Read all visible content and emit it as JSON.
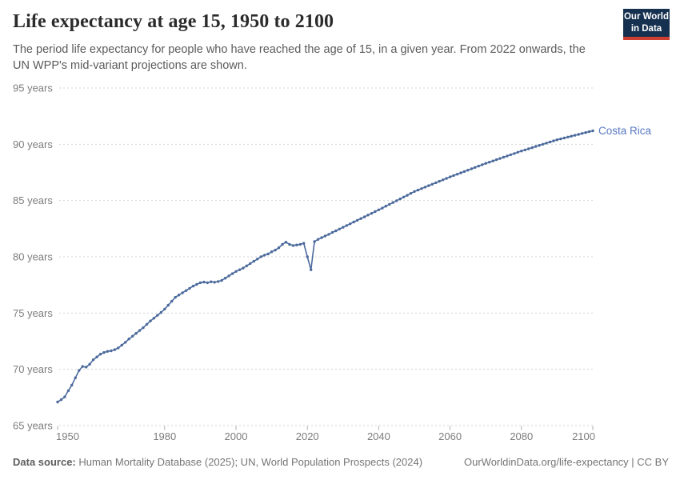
{
  "header": {
    "title": "Life expectancy at age 15, 1950 to 2100",
    "subtitle": "The period life expectancy for people who have reached the age of 15, in a given year. From 2022 onwards, the UN WPP's mid-variant projections are shown."
  },
  "logo": {
    "line1": "Our World",
    "line2": "in Data",
    "bg_color": "#16304f",
    "bar_color": "#cf3f31"
  },
  "footer": {
    "source_label": "Data source:",
    "source_text": " Human Mortality Database (2025); UN, World Population Prospects (2024)",
    "attribution": "OurWorldinData.org/life-expectancy | CC BY"
  },
  "chart_data": {
    "type": "line",
    "title": "Life expectancy at age 15, 1950 to 2100",
    "xlabel": "",
    "ylabel": "",
    "xlim": [
      1950,
      2100
    ],
    "ylim": [
      65,
      95
    ],
    "grid": "horizontal-dashed",
    "legend_position": "end-of-line-label",
    "projection_start_year": 2022,
    "xticks": [
      1950,
      1980,
      2000,
      2020,
      2040,
      2060,
      2080,
      2100
    ],
    "yticks": [
      {
        "value": 95,
        "label": "95 years"
      },
      {
        "value": 90,
        "label": "90 years"
      },
      {
        "value": 85,
        "label": "85 years"
      },
      {
        "value": 80,
        "label": "80 years"
      },
      {
        "value": 75,
        "label": "75 years"
      },
      {
        "value": 70,
        "label": "70 years"
      },
      {
        "value": 65,
        "label": "65 years"
      }
    ],
    "series": [
      {
        "name": "Costa Rica",
        "color": "#4c6a9c",
        "label_color": "#5878c1",
        "year_start": 1950,
        "year_end": 2100,
        "year_step": 1,
        "values": [
          67.1,
          67.3,
          67.55,
          68.1,
          68.6,
          69.25,
          69.9,
          70.25,
          70.2,
          70.45,
          70.85,
          71.1,
          71.35,
          71.5,
          71.6,
          71.65,
          71.75,
          71.9,
          72.15,
          72.4,
          72.7,
          72.95,
          73.2,
          73.45,
          73.7,
          74.0,
          74.3,
          74.55,
          74.8,
          75.05,
          75.35,
          75.7,
          76.05,
          76.4,
          76.6,
          76.8,
          77.0,
          77.2,
          77.4,
          77.55,
          77.7,
          77.75,
          77.7,
          77.78,
          77.74,
          77.8,
          77.9,
          78.1,
          78.3,
          78.5,
          78.7,
          78.85,
          79.0,
          79.2,
          79.4,
          79.6,
          79.8,
          80.0,
          80.15,
          80.25,
          80.45,
          80.6,
          80.8,
          81.1,
          81.3,
          81.1,
          81.0,
          81.05,
          81.1,
          81.2,
          80.0,
          78.85,
          81.35,
          81.55,
          81.7,
          81.85,
          82.0,
          82.16,
          82.31,
          82.47,
          82.62,
          82.78,
          82.93,
          83.09,
          83.24,
          83.4,
          83.55,
          83.71,
          83.86,
          84.02,
          84.17,
          84.33,
          84.5,
          84.66,
          84.82,
          84.98,
          85.15,
          85.31,
          85.47,
          85.64,
          85.8,
          85.93,
          86.06,
          86.19,
          86.32,
          86.45,
          86.58,
          86.71,
          86.84,
          86.97,
          87.1,
          87.22,
          87.34,
          87.46,
          87.58,
          87.7,
          87.82,
          87.94,
          88.06,
          88.18,
          88.3,
          88.41,
          88.52,
          88.63,
          88.74,
          88.85,
          88.96,
          89.07,
          89.18,
          89.29,
          89.4,
          89.5,
          89.6,
          89.7,
          89.8,
          89.9,
          90.0,
          90.1,
          90.2,
          90.3,
          90.4,
          90.48,
          90.56,
          90.64,
          90.72,
          90.8,
          90.88,
          90.96,
          91.04,
          91.12,
          91.2
        ]
      }
    ],
    "axis_text_color": "#7d7d7d",
    "gridline_color": "#d5d5d5"
  }
}
